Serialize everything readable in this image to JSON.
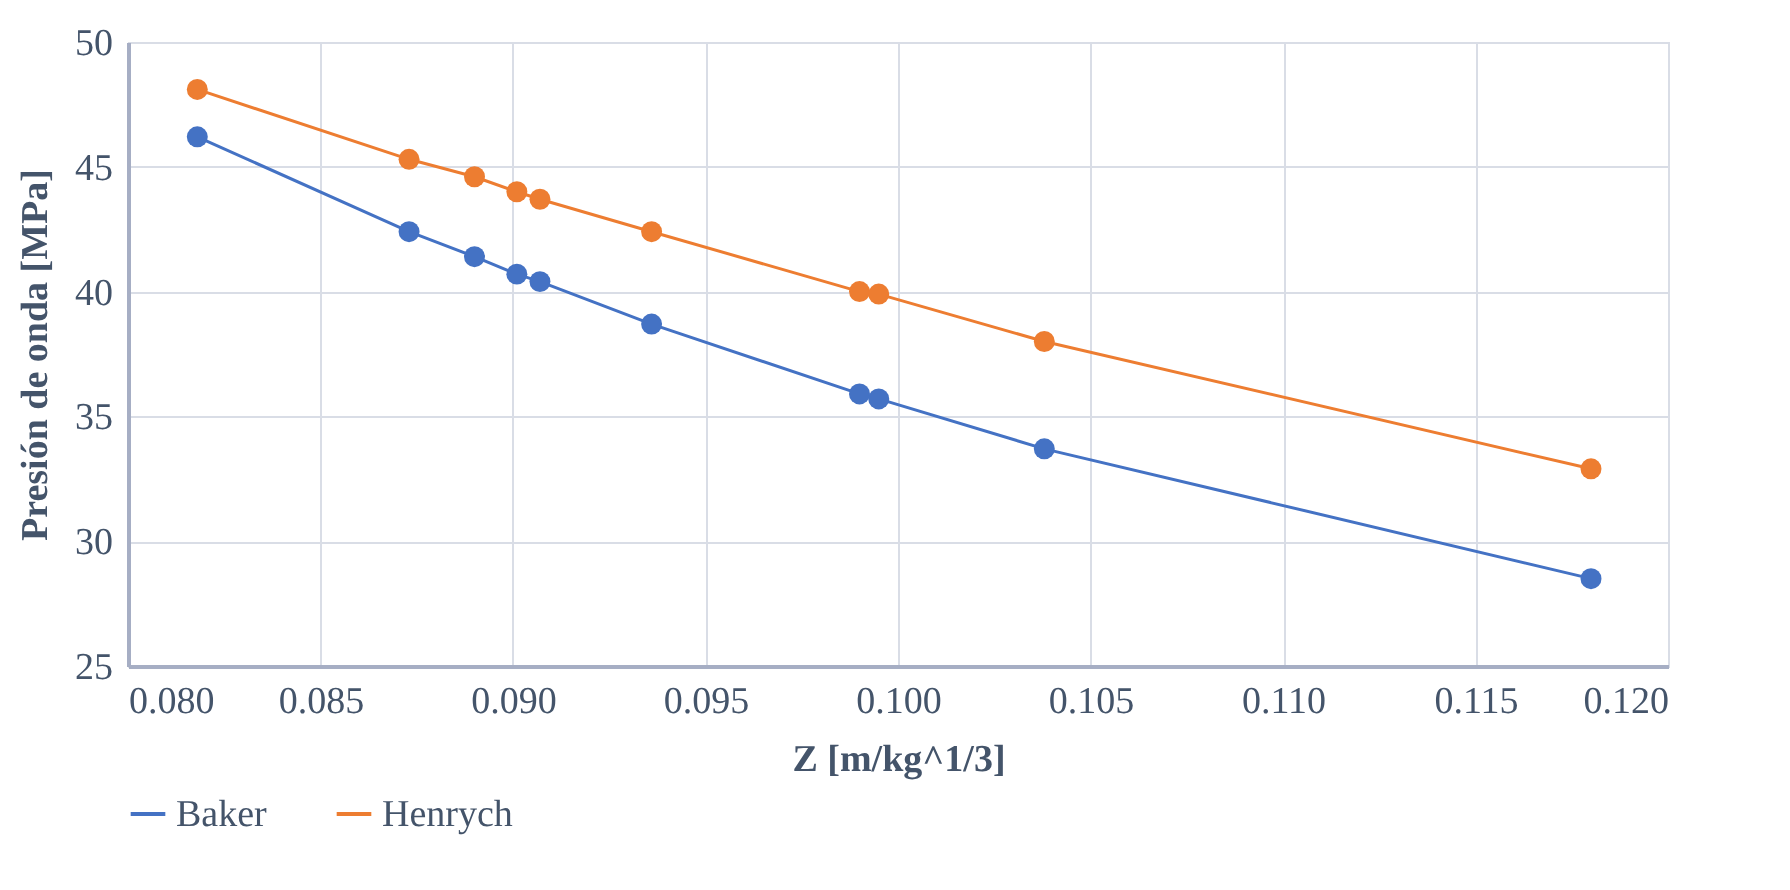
{
  "chart_data": {
    "type": "line",
    "xlabel": "Z [m/kg^1/3]",
    "ylabel": "Presión de onda [MPa]",
    "x": [
      0.0818,
      0.0873,
      0.089,
      0.0901,
      0.0907,
      0.0936,
      0.099,
      0.0995,
      0.1038,
      0.118
    ],
    "series": [
      {
        "name": "Baker",
        "color": "#4472c4",
        "values": [
          46.2,
          42.4,
          41.4,
          40.7,
          40.4,
          38.7,
          35.9,
          35.7,
          33.7,
          28.5
        ]
      },
      {
        "name": "Henrych",
        "color": "#ed7d31",
        "values": [
          48.1,
          45.3,
          44.6,
          44.0,
          43.7,
          42.4,
          40.0,
          39.9,
          38.0,
          32.9
        ]
      }
    ],
    "xlim": [
      0.08,
      0.12
    ],
    "xticks": [
      {
        "value": 0.08,
        "label": "0.080"
      },
      {
        "value": 0.085,
        "label": "0.085"
      },
      {
        "value": 0.09,
        "label": "0.090"
      },
      {
        "value": 0.095,
        "label": "0.095"
      },
      {
        "value": 0.1,
        "label": "0.100"
      },
      {
        "value": 0.105,
        "label": "0.105"
      },
      {
        "value": 0.11,
        "label": "0.110"
      },
      {
        "value": 0.115,
        "label": "0.115"
      },
      {
        "value": 0.12,
        "label": "0.120"
      }
    ],
    "ylim": [
      25,
      50
    ],
    "yticks": [
      25,
      30,
      35,
      40,
      45,
      50
    ],
    "grid": true,
    "legend": "bottom",
    "marker": "circle",
    "line_style": "solid"
  }
}
